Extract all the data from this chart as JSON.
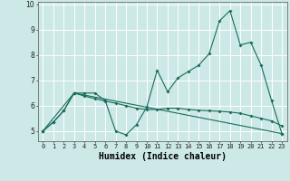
{
  "xlabel": "Humidex (Indice chaleur)",
  "background_color": "#cce9e8",
  "grid_color": "#ffffff",
  "line_color": "#1a6b5a",
  "xlim": [
    -0.5,
    23.5
  ],
  "ylim": [
    4.6,
    10.1
  ],
  "yticks": [
    5,
    6,
    7,
    8,
    9,
    10
  ],
  "xticks": [
    0,
    1,
    2,
    3,
    4,
    5,
    6,
    7,
    8,
    9,
    10,
    11,
    12,
    13,
    14,
    15,
    16,
    17,
    18,
    19,
    20,
    21,
    22,
    23
  ],
  "series1_x": [
    0,
    1,
    2,
    3,
    4,
    5,
    6,
    7,
    8,
    9,
    10,
    11,
    12,
    13,
    14,
    15,
    16,
    17,
    18,
    19,
    20,
    21,
    22,
    23
  ],
  "series1_y": [
    5.0,
    5.35,
    5.8,
    6.5,
    6.5,
    6.5,
    6.2,
    5.0,
    4.85,
    5.25,
    5.95,
    7.4,
    6.55,
    7.1,
    7.35,
    7.6,
    8.05,
    9.35,
    9.75,
    8.4,
    8.5,
    7.6,
    6.2,
    4.9
  ],
  "series2_x": [
    0,
    1,
    2,
    3,
    4,
    5,
    6,
    7,
    8,
    9,
    10,
    11,
    12,
    13,
    14,
    15,
    16,
    17,
    18,
    19,
    20,
    21,
    22,
    23
  ],
  "series2_y": [
    5.0,
    5.35,
    5.8,
    6.5,
    6.38,
    6.28,
    6.18,
    6.1,
    6.0,
    5.9,
    5.85,
    5.85,
    5.9,
    5.9,
    5.85,
    5.82,
    5.8,
    5.78,
    5.75,
    5.7,
    5.6,
    5.5,
    5.4,
    5.2
  ],
  "series3_x": [
    0,
    3,
    23
  ],
  "series3_y": [
    5.0,
    6.5,
    4.9
  ]
}
